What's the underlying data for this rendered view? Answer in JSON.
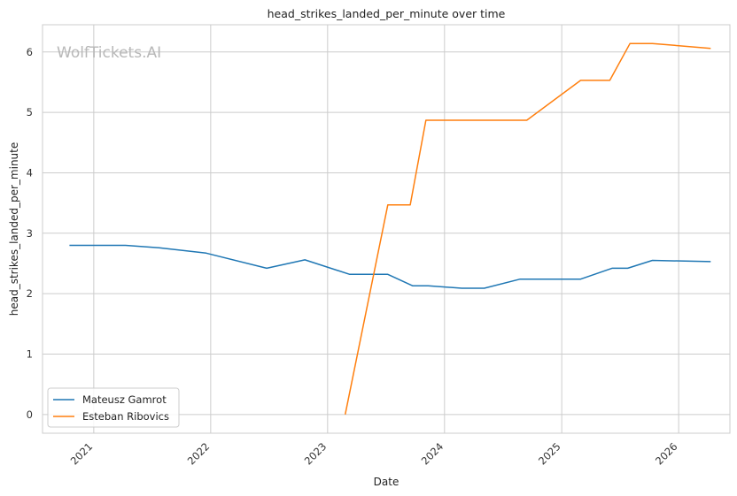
{
  "chart_data": {
    "type": "line",
    "title": "head_strikes_landed_per_minute over time",
    "xlabel": "Date",
    "ylabel": "head_strikes_landed_per_minute",
    "watermark": "WolfTickets.AI",
    "x_range": [
      "2020-07-25",
      "2026-06-10"
    ],
    "ylim": [
      -0.31,
      6.45
    ],
    "x_ticks": [
      "2021",
      "2022",
      "2023",
      "2024",
      "2025",
      "2026"
    ],
    "y_ticks": [
      0,
      1,
      2,
      3,
      4,
      5,
      6
    ],
    "grid": true,
    "legend_position": "lower-left",
    "series": [
      {
        "name": "Mateusz Gamrot",
        "color": "#1f77b4",
        "points": [
          [
            "2020-10-17",
            2.8
          ],
          [
            "2021-04-10",
            2.8
          ],
          [
            "2021-07-24",
            2.76
          ],
          [
            "2021-12-18",
            2.67
          ],
          [
            "2022-06-25",
            2.42
          ],
          [
            "2022-10-22",
            2.56
          ],
          [
            "2023-03-11",
            2.32
          ],
          [
            "2023-07-08",
            2.32
          ],
          [
            "2023-09-23",
            2.13
          ],
          [
            "2023-11-11",
            2.13
          ],
          [
            "2024-02-24",
            2.09
          ],
          [
            "2024-05-04",
            2.09
          ],
          [
            "2024-08-24",
            2.24
          ],
          [
            "2024-11-30",
            2.24
          ],
          [
            "2025-03-01",
            2.24
          ],
          [
            "2025-06-07",
            2.42
          ],
          [
            "2025-07-26",
            2.42
          ],
          [
            "2025-10-11",
            2.55
          ],
          [
            "2026-04-11",
            2.53
          ]
        ]
      },
      {
        "name": "Esteban Ribovics",
        "color": "#ff7f0e",
        "points": [
          [
            "2023-02-25",
            0.0
          ],
          [
            "2023-07-08",
            3.47
          ],
          [
            "2023-09-16",
            3.47
          ],
          [
            "2023-11-04",
            4.87
          ],
          [
            "2024-09-14",
            4.87
          ],
          [
            "2025-03-01",
            5.53
          ],
          [
            "2025-05-31",
            5.53
          ],
          [
            "2025-08-02",
            6.14
          ],
          [
            "2025-10-11",
            6.14
          ],
          [
            "2026-04-11",
            6.06
          ]
        ]
      }
    ]
  }
}
